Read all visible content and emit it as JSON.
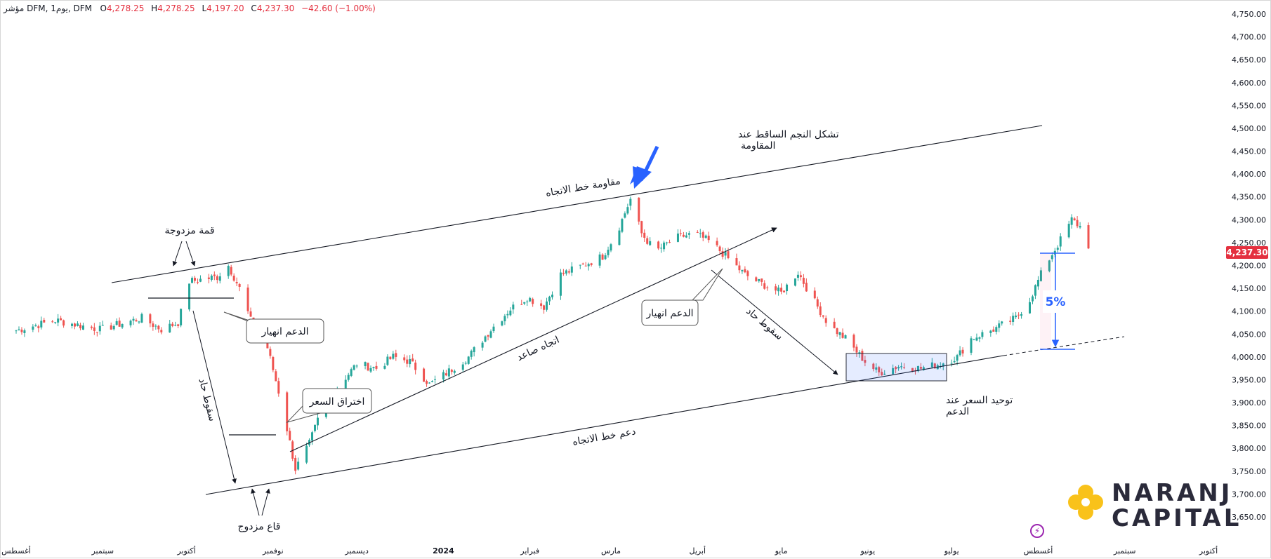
{
  "header": {
    "symbol": "مؤشر DFM, يوم1, DFM",
    "open_label": "O",
    "open": "4,278.25",
    "high_label": "H",
    "high": "4,278.25",
    "low_label": "L",
    "low": "4,197.20",
    "close_label": "C",
    "close": "4,237.30",
    "change": "−42.60 (−1.00%)"
  },
  "current_price_tag": "4,237.30",
  "colors": {
    "up": "#26a69a",
    "down": "#ef5350",
    "price_tag": "#e4303f",
    "annotation_blue": "#2962ff",
    "trendline": "#131722"
  },
  "logo": {
    "line1": "NARANJ",
    "line2": "CAPITAL",
    "mark_color": "#f9c21a"
  },
  "price_axis_labels": [
    "4,750.00",
    "4,700.00",
    "4,650.00",
    "4,600.00",
    "4,550.00",
    "4,500.00",
    "4,450.00",
    "4,400.00",
    "4,350.00",
    "4,300.00",
    "4,250.00",
    "4,200.00",
    "4,150.00",
    "4,100.00",
    "4,050.00",
    "4,000.00",
    "3,950.00",
    "3,900.00",
    "3,850.00",
    "3,800.00",
    "3,750.00",
    "3,700.00",
    "3,650.00"
  ],
  "time_axis_labels": [
    "أغسطس",
    "سبتمبر",
    "أكتوبر",
    "نوفمبر",
    "ديسمبر",
    "2024",
    "فبراير",
    "مارس",
    "أبريل",
    "مايو",
    "يونيو",
    "يوليو",
    "أغسطس",
    "سبتمبر",
    "أكتوبر"
  ],
  "annotations": {
    "double_top": "قمة مزدوجة",
    "support_break_1": "الدعم انهيار",
    "sharp_drop_1": "سقوط حاد",
    "double_bottom": "قاع مزدوج",
    "price_breakout": "اختراق السعر",
    "uptrend": "اتجاه صاعد",
    "trend_support": "دعم خط الاتجاه",
    "trend_resistance": "مقاومة خط الاتجاه",
    "shooting_star_line1": "تشكل النجم الساقط عند",
    "shooting_star_line2": "المقاومة",
    "support_break_2": "الدعم انهيار",
    "sharp_drop_2": "سقوط حاد",
    "consolidation_line1": "توحيد السعر عند",
    "consolidation_line2": "الدعم",
    "percent_move": "5%"
  },
  "chart_data": {
    "type": "candlestick",
    "title": "",
    "xlabel": "",
    "ylabel": "",
    "ylim": [
      3620,
      4770
    ],
    "x_range": [
      "2023-08-01",
      "2024-10-10"
    ],
    "grid": false,
    "close_path": [
      [
        "2023-08-01",
        4058
      ],
      [
        "2023-08-15",
        4080
      ],
      [
        "2023-08-31",
        4060
      ],
      [
        "2023-09-15",
        4085
      ],
      [
        "2023-09-22",
        4060
      ],
      [
        "2023-09-28",
        4075
      ],
      [
        "2023-10-02",
        4165
      ],
      [
        "2023-10-12",
        4175
      ],
      [
        "2023-10-16",
        4200
      ],
      [
        "2023-10-20",
        4150
      ],
      [
        "2023-10-24",
        4080
      ],
      [
        "2023-10-30",
        4020
      ],
      [
        "2023-11-04",
        3900
      ],
      [
        "2023-11-09",
        3755
      ],
      [
        "2023-11-14",
        3810
      ],
      [
        "2023-11-18",
        3880
      ],
      [
        "2023-11-25",
        3940
      ],
      [
        "2023-12-01",
        3985
      ],
      [
        "2023-12-08",
        3975
      ],
      [
        "2023-12-14",
        4000
      ],
      [
        "2023-12-20",
        3990
      ],
      [
        "2023-12-27",
        3940
      ],
      [
        "2024-01-01",
        3960
      ],
      [
        "2024-01-10",
        4000
      ],
      [
        "2024-01-18",
        4060
      ],
      [
        "2024-01-25",
        4105
      ],
      [
        "2024-01-31",
        4130
      ],
      [
        "2024-02-06",
        4110
      ],
      [
        "2024-02-12",
        4180
      ],
      [
        "2024-02-20",
        4200
      ],
      [
        "2024-02-27",
        4220
      ],
      [
        "2024-03-03",
        4270
      ],
      [
        "2024-03-08",
        4345
      ],
      [
        "2024-03-12",
        4270
      ],
      [
        "2024-03-17",
        4230
      ],
      [
        "2024-03-24",
        4260
      ],
      [
        "2024-03-31",
        4270
      ],
      [
        "2024-04-06",
        4250
      ],
      [
        "2024-04-12",
        4215
      ],
      [
        "2024-04-18",
        4180
      ],
      [
        "2024-04-24",
        4160
      ],
      [
        "2024-05-01",
        4140
      ],
      [
        "2024-05-07",
        4185
      ],
      [
        "2024-05-12",
        4130
      ],
      [
        "2024-05-18",
        4070
      ],
      [
        "2024-05-24",
        4040
      ],
      [
        "2024-05-31",
        3990
      ],
      [
        "2024-06-05",
        3965
      ],
      [
        "2024-06-12",
        3980
      ],
      [
        "2024-06-20",
        3975
      ],
      [
        "2024-06-27",
        3985
      ],
      [
        "2024-07-03",
        4000
      ],
      [
        "2024-07-08",
        4040
      ],
      [
        "2024-07-16",
        4060
      ],
      [
        "2024-07-24",
        4085
      ],
      [
        "2024-07-29",
        4125
      ],
      [
        "2024-08-03",
        4195
      ],
      [
        "2024-08-08",
        4245
      ],
      [
        "2024-08-13",
        4300
      ],
      [
        "2024-08-17",
        4280
      ],
      [
        "2024-08-19",
        4237.3
      ]
    ],
    "trendlines": [
      {
        "name": "مقاومة خط الاتجاه",
        "from": [
          "2023-09-22",
          4170
        ],
        "to": [
          "2024-08-20",
          4510
        ]
      },
      {
        "name": "دعم خط الاتجاه",
        "from": [
          "2023-10-31",
          3715
        ],
        "to": [
          "2024-10-01",
          4055
        ]
      },
      {
        "name": "اتجاه صاعد",
        "from": [
          "2023-11-23",
          3815
        ],
        "to": [
          "2024-05-24",
          4285
        ]
      }
    ],
    "consolidation_box": {
      "from": "2024-06-06",
      "to": "2024-07-11",
      "low": 3962,
      "high": 4018
    },
    "move_marker": {
      "date": "2024-08-20",
      "from": 4233,
      "to": 4027,
      "label": "5%"
    }
  }
}
